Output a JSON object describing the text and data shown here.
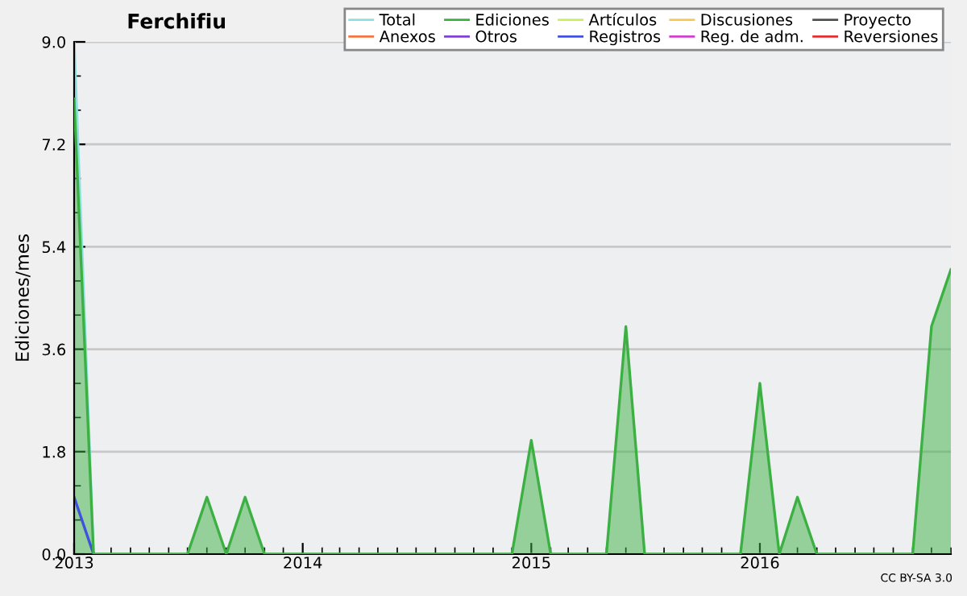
{
  "chart_data": {
    "type": "line",
    "title": "Ferchifiu",
    "ylabel": "Ediciones/mes",
    "x": [
      "2013-01",
      "2013-02",
      "2013-03",
      "2013-04",
      "2013-05",
      "2013-06",
      "2013-07",
      "2013-08",
      "2013-09",
      "2013-10",
      "2013-11",
      "2013-12",
      "2014-01",
      "2014-02",
      "2014-03",
      "2014-04",
      "2014-05",
      "2014-06",
      "2014-07",
      "2014-08",
      "2014-09",
      "2014-10",
      "2014-11",
      "2014-12",
      "2015-01",
      "2015-02",
      "2015-03",
      "2015-04",
      "2015-05",
      "2015-06",
      "2015-07",
      "2015-08",
      "2015-09",
      "2015-10",
      "2015-11",
      "2015-12",
      "2016-01",
      "2016-02",
      "2016-03",
      "2016-04",
      "2016-05",
      "2016-06",
      "2016-07",
      "2016-08",
      "2016-09",
      "2016-10",
      "2016-11"
    ],
    "series": [
      {
        "name": "Total",
        "color": "#8ee0e0",
        "values": [
          9,
          0,
          null,
          null,
          null,
          null,
          null,
          null,
          null,
          null,
          null,
          null,
          null,
          null,
          null,
          null,
          null,
          null,
          null,
          null,
          null,
          null,
          null,
          null,
          null,
          null,
          null,
          null,
          null,
          null,
          null,
          null,
          null,
          null,
          null,
          null,
          null,
          null,
          null,
          null,
          null,
          null,
          null,
          null,
          null,
          null,
          null
        ]
      },
      {
        "name": "Ediciones",
        "type": "area",
        "color": "#3cb043",
        "values": [
          8,
          0,
          0,
          0,
          0,
          0,
          0,
          1,
          0,
          1,
          0,
          0,
          0,
          0,
          0,
          0,
          0,
          0,
          0,
          0,
          0,
          0,
          0,
          0,
          2,
          0,
          0,
          0,
          0,
          4,
          0,
          0,
          0,
          0,
          0,
          0,
          3,
          0,
          1,
          0,
          0,
          0,
          0,
          0,
          0,
          4,
          5
        ]
      },
      {
        "name": "Artículos",
        "color": "#c8f060",
        "values": [
          null,
          null,
          null,
          null,
          null,
          null,
          null,
          null,
          null,
          null,
          null,
          null,
          null,
          null,
          null,
          null,
          null,
          null,
          null,
          null,
          null,
          null,
          null,
          null,
          null,
          null,
          null,
          null,
          null,
          null,
          null,
          null,
          null,
          null,
          null,
          null,
          null,
          null,
          null,
          null,
          null,
          null,
          null,
          null,
          null,
          null,
          null
        ]
      },
      {
        "name": "Discusiones",
        "color": "#f8c850",
        "values": [
          null,
          null,
          null,
          null,
          null,
          null,
          null,
          null,
          null,
          null,
          null,
          null,
          null,
          null,
          null,
          null,
          null,
          null,
          null,
          null,
          null,
          null,
          null,
          null,
          null,
          null,
          null,
          null,
          null,
          null,
          null,
          null,
          null,
          null,
          null,
          null,
          null,
          null,
          null,
          null,
          null,
          null,
          null,
          null,
          null,
          null,
          null
        ]
      },
      {
        "name": "Proyecto",
        "color": "#505050",
        "values": [
          null,
          null,
          null,
          null,
          null,
          null,
          null,
          null,
          null,
          null,
          null,
          null,
          null,
          null,
          null,
          null,
          null,
          null,
          null,
          null,
          null,
          null,
          null,
          null,
          null,
          null,
          null,
          null,
          null,
          null,
          null,
          null,
          null,
          null,
          null,
          null,
          null,
          null,
          null,
          null,
          null,
          null,
          null,
          null,
          null,
          null,
          null
        ]
      },
      {
        "name": "Anexos",
        "color": "#f07840",
        "values": [
          null,
          null,
          null,
          null,
          null,
          null,
          null,
          null,
          null,
          null,
          null,
          null,
          null,
          null,
          null,
          null,
          null,
          null,
          null,
          null,
          null,
          null,
          null,
          null,
          null,
          null,
          null,
          null,
          null,
          null,
          null,
          null,
          null,
          null,
          null,
          null,
          null,
          null,
          null,
          null,
          null,
          null,
          null,
          null,
          null,
          null,
          null
        ]
      },
      {
        "name": "Otros",
        "color": "#8040d0",
        "values": [
          null,
          null,
          null,
          null,
          null,
          null,
          null,
          null,
          null,
          null,
          null,
          null,
          null,
          null,
          null,
          null,
          null,
          null,
          null,
          null,
          null,
          null,
          null,
          null,
          null,
          null,
          null,
          null,
          null,
          null,
          null,
          null,
          null,
          null,
          null,
          null,
          null,
          null,
          null,
          null,
          null,
          null,
          null,
          null,
          null,
          null,
          null
        ]
      },
      {
        "name": "Registros",
        "color": "#4050e0",
        "values": [
          1,
          0,
          null,
          null,
          null,
          null,
          null,
          null,
          null,
          null,
          null,
          null,
          null,
          null,
          null,
          null,
          null,
          null,
          null,
          null,
          null,
          null,
          null,
          null,
          null,
          null,
          null,
          null,
          null,
          null,
          null,
          null,
          null,
          null,
          null,
          null,
          null,
          null,
          null,
          null,
          null,
          null,
          null,
          null,
          null,
          null,
          null
        ]
      },
      {
        "name": "Reg. de adm.",
        "color": "#d040d0",
        "values": [
          null,
          null,
          null,
          null,
          null,
          null,
          null,
          null,
          null,
          null,
          null,
          null,
          null,
          null,
          null,
          null,
          null,
          null,
          null,
          null,
          null,
          null,
          null,
          null,
          null,
          null,
          null,
          null,
          null,
          null,
          null,
          null,
          null,
          null,
          null,
          null,
          null,
          null,
          null,
          null,
          null,
          null,
          null,
          null,
          null,
          null,
          null
        ]
      },
      {
        "name": "Reversiones",
        "color": "#e03030",
        "values": [
          null,
          null,
          null,
          null,
          null,
          null,
          null,
          null,
          null,
          null,
          null,
          null,
          null,
          null,
          null,
          null,
          null,
          null,
          null,
          null,
          null,
          null,
          null,
          null,
          null,
          null,
          null,
          null,
          null,
          null,
          null,
          null,
          null,
          null,
          null,
          null,
          null,
          null,
          null,
          null,
          null,
          null,
          null,
          null,
          null,
          null,
          null
        ]
      }
    ],
    "xlim": [
      "2013-01",
      "2016-11"
    ],
    "xticks": [
      {
        "value": "2013-01",
        "label": "2013"
      },
      {
        "value": "2014-01",
        "label": "2014"
      },
      {
        "value": "2015-01",
        "label": "2015"
      },
      {
        "value": "2016-01",
        "label": "2016"
      }
    ],
    "ylim": [
      0,
      9
    ],
    "yticks": [
      {
        "value": 0,
        "label": "0.0"
      },
      {
        "value": 1.8,
        "label": "1.8"
      },
      {
        "value": 3.6,
        "label": "3.6"
      },
      {
        "value": 5.4,
        "label": "5.4"
      },
      {
        "value": 7.2,
        "label": "7.2"
      },
      {
        "value": 9,
        "label": "9.0"
      }
    ],
    "grid": "y",
    "legend": "top right",
    "marker": "none",
    "line_style": "solid",
    "annotations": [
      "CC BY-SA 3.0"
    ]
  }
}
